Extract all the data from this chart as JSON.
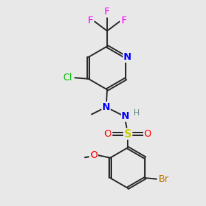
{
  "background_color": "#e8e8e8",
  "bond_color": "#2a2a2a",
  "atom_colors": {
    "F": "#ff00ff",
    "Cl": "#00bb00",
    "N": "#0000ff",
    "O": "#ff0000",
    "S": "#cccc00",
    "Br": "#bb7700",
    "H": "#668888"
  },
  "figsize": [
    3.0,
    3.0
  ],
  "dpi": 100,
  "xlim": [
    0,
    10
  ],
  "ylim": [
    0,
    10
  ]
}
